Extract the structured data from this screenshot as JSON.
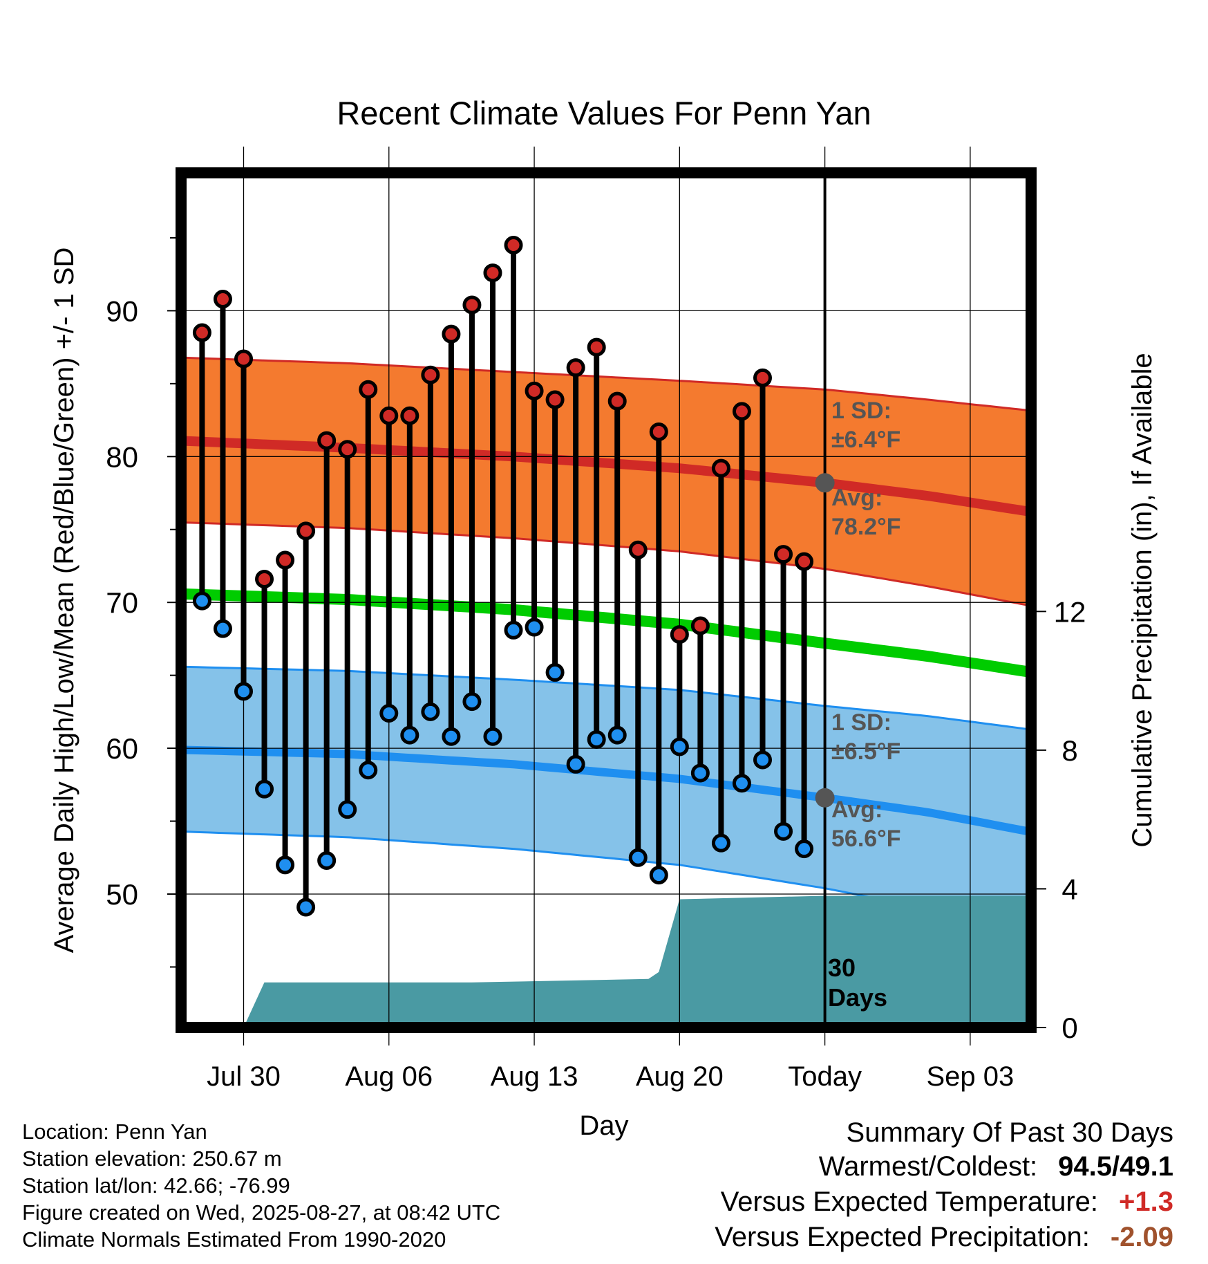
{
  "chart_data": {
    "type": "line",
    "title": "Recent Climate Values For Penn Yan",
    "xlabel": "Day",
    "ylabel": "Average Daily High/Low/Mean (Red/Blue/Green) +/- 1 SD",
    "ylabel_right": "Cumulative Precipitation (in), If Available",
    "x_ticks": [
      {
        "day": 3,
        "label": "Jul 30"
      },
      {
        "day": 10,
        "label": "Aug 06"
      },
      {
        "day": 17,
        "label": "Aug 13"
      },
      {
        "day": 24,
        "label": "Aug 20"
      },
      {
        "day": 31,
        "label": "Today"
      },
      {
        "day": 38,
        "label": "Sep 03"
      }
    ],
    "x_range_days": [
      -0.3,
      41.9
    ],
    "today_day": 31,
    "ylim": [
      41.5,
      94.5
    ],
    "y_ticks": [
      50,
      60,
      70,
      80,
      90
    ],
    "y2lim": [
      0,
      24.65
    ],
    "y2_ticks": [
      0,
      4,
      8,
      12
    ],
    "series": [
      {
        "name": "High",
        "days": [
          1,
          2,
          3,
          4,
          5,
          6,
          7,
          8,
          9,
          10,
          11,
          12,
          13,
          14,
          15,
          16,
          17,
          18,
          19,
          20,
          21,
          22,
          23,
          24,
          25,
          26,
          27,
          28,
          29,
          30
        ],
        "values": [
          88.5,
          90.8,
          86.7,
          71.6,
          72.9,
          74.9,
          81.1,
          80.5,
          84.6,
          82.8,
          82.8,
          85.6,
          88.4,
          90.4,
          92.6,
          94.5,
          84.5,
          83.9,
          86.1,
          87.5,
          83.8,
          73.6,
          81.7,
          67.8,
          68.4,
          79.2,
          83.1,
          85.4,
          73.3,
          72.8
        ]
      },
      {
        "name": "Low",
        "days": [
          1,
          2,
          3,
          4,
          5,
          6,
          7,
          8,
          9,
          10,
          11,
          12,
          13,
          14,
          15,
          16,
          17,
          18,
          19,
          20,
          21,
          22,
          23,
          24,
          25,
          26,
          27,
          28,
          29,
          30
        ],
        "values": [
          70.1,
          68.2,
          63.9,
          57.2,
          52.0,
          49.1,
          52.3,
          55.8,
          58.5,
          62.4,
          60.9,
          62.5,
          60.8,
          63.2,
          60.8,
          68.1,
          68.3,
          65.2,
          58.9,
          60.6,
          60.9,
          52.5,
          51.3,
          60.1,
          58.3,
          53.5,
          57.6,
          59.2,
          54.3,
          53.1
        ]
      },
      {
        "name": "Normal High",
        "days": [
          -0.3,
          8,
          16,
          24,
          31,
          36,
          41.9
        ],
        "values": [
          81.1,
          80.6,
          80.0,
          79.2,
          78.2,
          77.3,
          76.0
        ]
      },
      {
        "name": "Normal High +1 SD",
        "days": [
          -0.3,
          8,
          16,
          24,
          31,
          36,
          41.9
        ],
        "values": [
          86.8,
          86.4,
          85.8,
          85.2,
          84.6,
          83.9,
          83.0
        ]
      },
      {
        "name": "Normal High -1 SD",
        "days": [
          -0.3,
          8,
          16,
          24,
          31,
          36,
          41.9
        ],
        "values": [
          75.5,
          75.1,
          74.4,
          73.5,
          72.3,
          71.1,
          69.5
        ]
      },
      {
        "name": "Normal Mean",
        "days": [
          -0.3,
          8,
          16,
          24,
          31,
          36,
          41.9
        ],
        "values": [
          70.6,
          70.2,
          69.5,
          68.5,
          67.2,
          66.3,
          65.0
        ]
      },
      {
        "name": "Normal Low +1 SD",
        "days": [
          -0.3,
          8,
          16,
          24,
          31,
          36,
          41.9
        ],
        "values": [
          65.6,
          65.3,
          64.7,
          64.0,
          62.9,
          62.2,
          61.1
        ]
      },
      {
        "name": "Normal Low",
        "days": [
          -0.3,
          8,
          16,
          24,
          31,
          36,
          41.9
        ],
        "values": [
          59.9,
          59.6,
          58.9,
          57.9,
          56.6,
          55.6,
          54.0
        ]
      },
      {
        "name": "Normal Low -1 SD",
        "days": [
          -0.3,
          8,
          16,
          24,
          31,
          36,
          41.9
        ],
        "values": [
          54.3,
          53.9,
          53.1,
          52.0,
          50.4,
          49.0,
          47.4
        ]
      },
      {
        "name": "Cumulative Precipitation",
        "days": [
          3,
          4,
          14,
          22.5,
          23,
          24,
          31,
          41.9
        ],
        "values": [
          0,
          1.3,
          1.3,
          1.4,
          1.6,
          3.7,
          3.8,
          3.8
        ]
      }
    ],
    "annotations": {
      "high_sd_label": "1 SD:",
      "high_sd_value": "±6.4°F",
      "high_avg_label": "Avg:",
      "high_avg_value": "78.2°F",
      "high_avg": 78.2,
      "low_sd_label": "1 SD:",
      "low_sd_value": "±6.5°F",
      "low_avg_label": "Avg:",
      "low_avg_value": "56.6°F",
      "low_avg": 56.6,
      "days_label_1": "30",
      "days_label_2": "Days"
    },
    "grid": true,
    "colors": {
      "high_band": "#f47a2f",
      "high_line": "#d02a26",
      "mean_line": "#00cc00",
      "low_band": "#85c2e9",
      "low_line": "#1f8ff0",
      "precip": "#4a9aa3",
      "high_marker": "#d02a26",
      "low_marker": "#1f8ff0",
      "avg_marker": "#555555",
      "annotation_text": "#555555"
    }
  },
  "info": {
    "location": "Location: Penn Yan",
    "elevation": "Station elevation: 250.67 m",
    "latlon": "Station lat/lon: 42.66; -76.99",
    "created": "Figure created on Wed, 2025-08-27, at 08:42 UTC",
    "normals": "Climate Normals Estimated From 1990-2020"
  },
  "summary": {
    "title": "Summary Of Past 30 Days",
    "warm_cold_label": "Warmest/Coldest:",
    "warm_cold_value": "94.5/49.1",
    "temp_label": "Versus Expected Temperature:",
    "temp_value": "+1.3",
    "temp_color": "#d02a26",
    "precip_label": "Versus Expected Precipitation:",
    "precip_value": "-2.09",
    "precip_color": "#a0522d"
  }
}
